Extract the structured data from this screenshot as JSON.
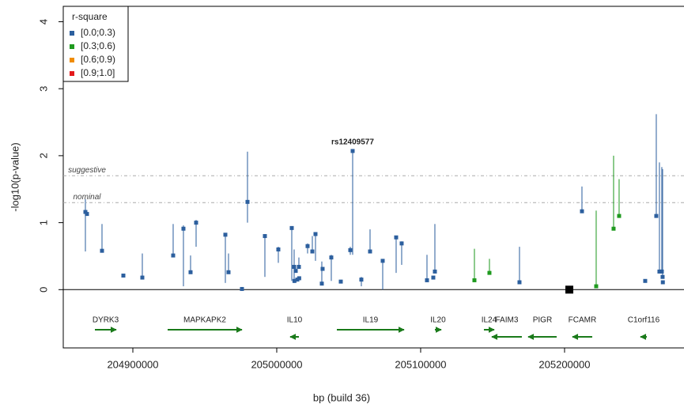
{
  "chart_data": {
    "type": "scatter",
    "xlabel": "bp (build 36)",
    "ylabel": "-log10(p-value)",
    "xlim": [
      204851650,
      205283000
    ],
    "ylim": [
      -0.87,
      4.23
    ],
    "xticks": [
      204900000,
      205000000,
      205100000,
      205200000
    ],
    "yticks": [
      0,
      1,
      2,
      3,
      4
    ],
    "legend_title": "r-square",
    "legend_position": "top-left",
    "lead_snp": "rs12409577",
    "thresholds": [
      {
        "label": "suggestive",
        "value": 1.7
      },
      {
        "label": "nominal",
        "value": 1.3
      }
    ],
    "marker": {
      "x": 205203300,
      "y": 0,
      "color": "#000000"
    },
    "series": [
      {
        "name": "[0.0;0.3)",
        "color": "#2c5f9e",
        "x": [
          204867030,
          204868130,
          204878570,
          204893410,
          204906590,
          204928020,
          204935160,
          204940110,
          204943960,
          204964290,
          204966480,
          204975820,
          204979670,
          204991760,
          205001100,
          205010440,
          205012090,
          205012300,
          205013190,
          205014290,
          205015380,
          205015600,
          205021430,
          205024730,
          205026920,
          205031320,
          205031870,
          205037910,
          205044510,
          205051100,
          205052750,
          205058790,
          205064840,
          205073630,
          205082970,
          205086810,
          205104400,
          205108790,
          205109890,
          205168680,
          205212090,
          205256040,
          205263740,
          205265930,
          205267580,
          205268130,
          205268300
        ],
        "values": [
          1.16,
          1.13,
          0.58,
          0.21,
          0.18,
          0.51,
          0.91,
          0.26,
          1.0,
          0.82,
          0.26,
          0.01,
          1.31,
          0.8,
          0.6,
          0.92,
          0.34,
          0.13,
          0.28,
          0.15,
          0.34,
          0.17,
          0.65,
          0.57,
          0.83,
          0.09,
          0.31,
          0.48,
          0.12,
          0.59,
          2.07,
          0.15,
          0.57,
          0.43,
          0.78,
          0.69,
          0.14,
          0.18,
          0.27,
          0.11,
          1.17,
          0.13,
          1.1,
          0.27,
          0.27,
          0.19,
          0.11
        ],
        "lower": [
          0.57,
          null,
          0.58,
          null,
          0.18,
          0.51,
          0.05,
          0.26,
          0.64,
          0.1,
          0.26,
          null,
          1.0,
          0.19,
          0.4,
          0.13,
          0.1,
          null,
          null,
          null,
          0.34,
          null,
          0.54,
          0.57,
          0.43,
          0.09,
          null,
          0.13,
          null,
          0.52,
          0.52,
          0.05,
          0.57,
          0.0,
          0.25,
          0.37,
          0.14,
          null,
          0.27,
          0.11,
          1.17,
          null,
          1.1,
          0.27,
          0.27,
          0.19,
          null
        ],
        "upper": [
          1.35,
          null,
          0.98,
          null,
          0.54,
          0.98,
          0.96,
          0.51,
          1.04,
          0.84,
          0.54,
          null,
          2.06,
          0.81,
          0.64,
          0.94,
          0.6,
          null,
          null,
          null,
          0.48,
          null,
          0.69,
          0.8,
          0.85,
          0.42,
          null,
          0.52,
          null,
          0.64,
          2.07,
          0.19,
          0.9,
          0.43,
          0.8,
          0.72,
          0.52,
          null,
          0.98,
          0.64,
          1.54,
          null,
          2.62,
          1.9,
          1.83,
          1.8,
          null
        ]
      },
      {
        "name": "[0.3;0.6)",
        "color": "#1f9a1f",
        "x": [
          205137360,
          205147800,
          205221980,
          205234070,
          205237910
        ],
        "values": [
          0.14,
          0.25,
          0.05,
          0.91,
          1.1
        ],
        "lower": [
          0.14,
          0.25,
          0.05,
          0.91,
          1.1
        ],
        "upper": [
          0.61,
          0.46,
          1.18,
          2.0,
          1.65
        ]
      },
      {
        "name": "[0.6;0.9)",
        "color": "#f08c00",
        "x": [],
        "values": [],
        "lower": [],
        "upper": []
      },
      {
        "name": "[0.9;1.0]",
        "color": "#e41a1c",
        "x": [],
        "values": [],
        "lower": [],
        "upper": []
      }
    ],
    "gene_color": "#1a7a1a",
    "genes": [
      {
        "name": "DYRK3",
        "start": 204873630,
        "end": 204888460,
        "strand": "+",
        "row": 1
      },
      {
        "name": "MAPKAPK2",
        "start": 204924180,
        "end": 204975820,
        "strand": "+",
        "row": 1
      },
      {
        "name": "IL10",
        "start": 205009340,
        "end": 205015390,
        "strand": "-",
        "row": 2
      },
      {
        "name": "IL19",
        "start": 205041760,
        "end": 205088460,
        "strand": "+",
        "row": 1
      },
      {
        "name": "IL20",
        "start": 205109890,
        "end": 205114290,
        "strand": "+",
        "row": 1
      },
      {
        "name": "IL24",
        "start": 205143960,
        "end": 205151100,
        "strand": "+",
        "row": 1
      },
      {
        "name": "FAIM3",
        "start": 205149450,
        "end": 205170330,
        "strand": "-",
        "row": 2
      },
      {
        "name": "PIGR",
        "start": 205174730,
        "end": 205194500,
        "strand": "-",
        "row": 2
      },
      {
        "name": "FCAMR",
        "start": 205205490,
        "end": 205219230,
        "strand": "-",
        "row": 2
      },
      {
        "name": "C1orf116",
        "start": 205252750,
        "end": 205257140,
        "strand": "-",
        "row": 2
      }
    ]
  }
}
